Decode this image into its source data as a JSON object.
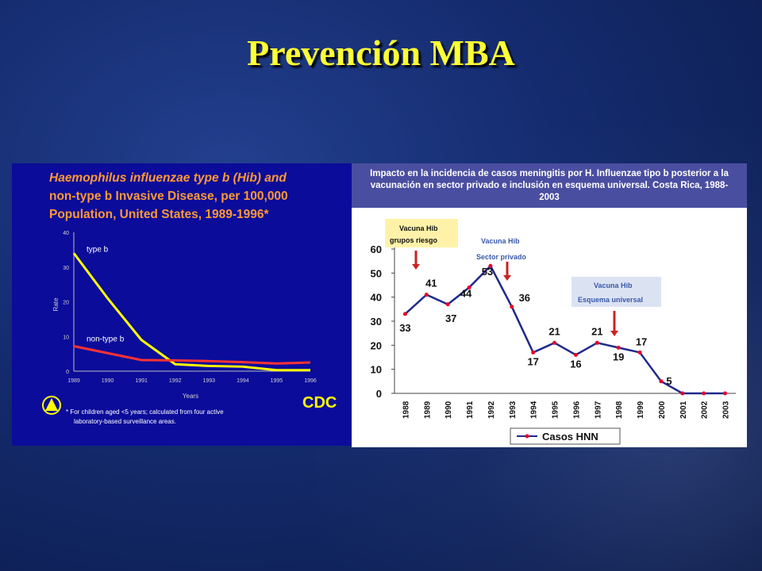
{
  "slide": {
    "title": "Prevención MBA"
  },
  "colors": {
    "title": "#ffff33",
    "left_bg": "#0b0c9a",
    "left_title": "#ff9933",
    "type_b_line": "#ffff00",
    "non_type_b_line": "#ff3333",
    "right_header_bg": "#4a4ea0",
    "right_line": "#1f2a8a",
    "right_marker": "#e8002a",
    "annotation_arrow": "#cc2222"
  },
  "chart_data": [
    {
      "type": "line",
      "title": "Haemophilus influenzae type b (Hib) and non-type b Invasive Disease, per 100,000 Population, United States, 1989-1996*",
      "title_lines": [
        "Haemophilus influenzae type b (Hib) and",
        "non-type b Invasive Disease, per 100,000",
        "Population, United States, 1989-1996*"
      ],
      "xlabel": "Years",
      "ylabel": "Rate",
      "x": [
        "1989",
        "1990",
        "1991",
        "1992",
        "1993",
        "1994",
        "1995",
        "1996"
      ],
      "ylim": [
        0,
        40
      ],
      "yticks": [
        "0",
        "10",
        "20",
        "30",
        "40"
      ],
      "series": [
        {
          "name": "type b",
          "values": [
            34,
            21,
            9,
            2,
            1.5,
            1.3,
            0.3,
            0.3
          ]
        },
        {
          "name": "non-type b",
          "values": [
            7.2,
            5.2,
            3.2,
            3.1,
            2.9,
            2.6,
            2.2,
            2.5
          ]
        }
      ],
      "footnote_lines": [
        "* For children aged <5 years; calculated from four active",
        "laboratory-based surveillance areas."
      ],
      "logo": "CDC"
    },
    {
      "type": "line",
      "title": "Impacto en la incidencia de casos meningitis por H. Influenzae tipo b posterior a la vacunación en sector privado e inclusión en esquema universal. Costa Rica, 1988-2003",
      "categories": [
        "1988",
        "1989",
        "1990",
        "1991",
        "1992",
        "1993",
        "1994",
        "1995",
        "1996",
        "1997",
        "1998",
        "1999",
        "2000",
        "2001",
        "2002",
        "2003"
      ],
      "series": [
        {
          "name": "Casos HNN",
          "values": [
            33,
            41,
            37,
            44,
            53,
            36,
            17,
            21,
            16,
            21,
            19,
            17,
            5,
            0,
            0,
            0
          ]
        }
      ],
      "data_labels": [
        "33",
        "41",
        "37",
        "44",
        "53",
        "36",
        "17",
        "21",
        "16",
        "21",
        "19",
        "17",
        "5"
      ],
      "ylim": [
        0,
        60
      ],
      "yticks": [
        "0",
        "10",
        "20",
        "30",
        "40",
        "50",
        "60"
      ],
      "legend": "bottom-center",
      "annotations": [
        {
          "lines": [
            "Vacuna Hib",
            "grupos riesgo"
          ],
          "year": "1988.5"
        },
        {
          "lines": [
            "Vacuna Hib",
            "Sector privado"
          ],
          "year": "1992.8"
        },
        {
          "lines": [
            "Vacuna Hib",
            "Esquema universal"
          ],
          "year": "1997.8"
        }
      ]
    }
  ]
}
